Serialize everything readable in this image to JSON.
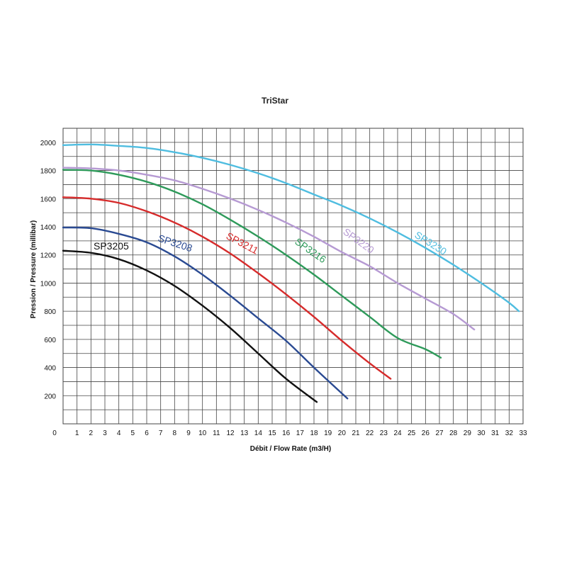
{
  "chart_data": {
    "type": "line",
    "title": "TriStar",
    "xlabel": "Débit / Flow Rate (m3/H)",
    "ylabel": "Pression / Pressure (millibar)",
    "xlim": [
      0,
      33
    ],
    "ylim": [
      0,
      2100
    ],
    "x_ticks": [
      "0",
      "1",
      "2",
      "3",
      "4",
      "5",
      "6",
      "7",
      "8",
      "9",
      "10",
      "11",
      "12",
      "13",
      "14",
      "15",
      "16",
      "17",
      "18",
      "19",
      "20",
      "21",
      "22",
      "23",
      "24",
      "25",
      "26",
      "27",
      "28",
      "29",
      "30",
      "31",
      "32",
      "33"
    ],
    "y_ticks": [
      "200",
      "400",
      "600",
      "800",
      "1000",
      "1200",
      "1400",
      "1600",
      "1800",
      "2000"
    ],
    "grid": true,
    "series": [
      {
        "name": "SP3205",
        "color": "#111111",
        "points": [
          [
            0,
            1230
          ],
          [
            2,
            1215
          ],
          [
            4,
            1170
          ],
          [
            6,
            1090
          ],
          [
            8,
            980
          ],
          [
            10,
            840
          ],
          [
            12,
            680
          ],
          [
            14,
            500
          ],
          [
            16,
            320
          ],
          [
            18.2,
            155
          ]
        ]
      },
      {
        "name": "SP3208",
        "color": "#2a4a92",
        "points": [
          [
            0,
            1395
          ],
          [
            2,
            1390
          ],
          [
            4,
            1350
          ],
          [
            6,
            1290
          ],
          [
            8,
            1190
          ],
          [
            10,
            1060
          ],
          [
            12,
            910
          ],
          [
            14,
            750
          ],
          [
            16,
            590
          ],
          [
            18,
            400
          ],
          [
            20.4,
            180
          ]
        ]
      },
      {
        "name": "SP3211",
        "color": "#d62b2b",
        "points": [
          [
            0,
            1610
          ],
          [
            2,
            1600
          ],
          [
            4,
            1570
          ],
          [
            6,
            1510
          ],
          [
            8,
            1430
          ],
          [
            10,
            1330
          ],
          [
            12,
            1210
          ],
          [
            14,
            1070
          ],
          [
            16,
            920
          ],
          [
            18,
            760
          ],
          [
            20,
            590
          ],
          [
            22,
            430
          ],
          [
            23.5,
            320
          ]
        ]
      },
      {
        "name": "SP3216",
        "color": "#2e9a5a",
        "points": [
          [
            0,
            1805
          ],
          [
            2,
            1800
          ],
          [
            4,
            1770
          ],
          [
            6,
            1720
          ],
          [
            8,
            1650
          ],
          [
            10,
            1560
          ],
          [
            12,
            1450
          ],
          [
            14,
            1330
          ],
          [
            16,
            1200
          ],
          [
            18,
            1060
          ],
          [
            20,
            910
          ],
          [
            22,
            760
          ],
          [
            24,
            610
          ],
          [
            26,
            530
          ],
          [
            27.1,
            470
          ]
        ]
      },
      {
        "name": "SP3220",
        "color": "#b69ad3",
        "points": [
          [
            0,
            1820
          ],
          [
            2,
            1815
          ],
          [
            4,
            1800
          ],
          [
            6,
            1770
          ],
          [
            8,
            1730
          ],
          [
            10,
            1670
          ],
          [
            12,
            1600
          ],
          [
            14,
            1520
          ],
          [
            16,
            1430
          ],
          [
            18,
            1330
          ],
          [
            20,
            1220
          ],
          [
            22,
            1120
          ],
          [
            24,
            1000
          ],
          [
            26,
            890
          ],
          [
            28,
            780
          ],
          [
            29.5,
            670
          ]
        ]
      },
      {
        "name": "SP3230",
        "color": "#4fbde0",
        "points": [
          [
            0,
            1980
          ],
          [
            2,
            1985
          ],
          [
            4,
            1975
          ],
          [
            6,
            1960
          ],
          [
            8,
            1930
          ],
          [
            10,
            1890
          ],
          [
            12,
            1840
          ],
          [
            14,
            1780
          ],
          [
            16,
            1710
          ],
          [
            18,
            1630
          ],
          [
            20,
            1550
          ],
          [
            22,
            1460
          ],
          [
            24,
            1360
          ],
          [
            26,
            1250
          ],
          [
            28,
            1130
          ],
          [
            30,
            1000
          ],
          [
            32,
            860
          ],
          [
            32.7,
            800
          ]
        ]
      }
    ],
    "curve_labels": [
      {
        "text": "SP3205",
        "series": "SP3205"
      },
      {
        "text": "SP3208",
        "series": "SP3208"
      },
      {
        "text": "SP3211",
        "series": "SP3211"
      },
      {
        "text": "SP3216",
        "series": "SP3216"
      },
      {
        "text": "SP3220",
        "series": "SP3220"
      },
      {
        "text": "SP3230",
        "series": "SP3230"
      }
    ]
  }
}
